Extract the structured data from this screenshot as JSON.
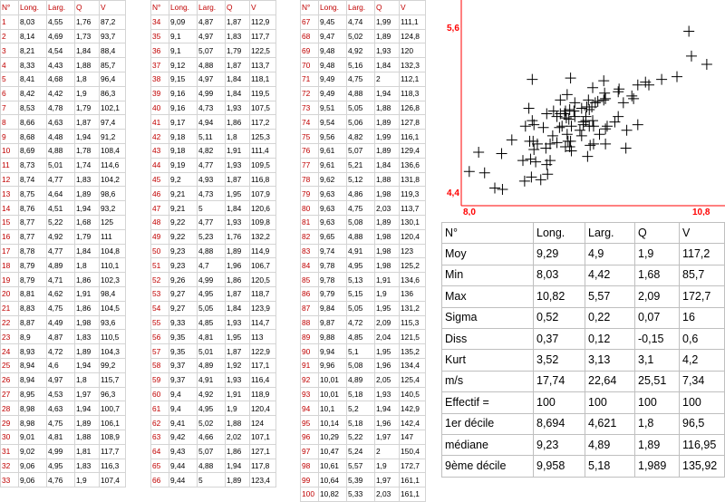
{
  "headers": [
    "N°",
    "Long.",
    "Larg.",
    "Q",
    "V"
  ],
  "blocks": [
    [
      [
        "1",
        "8,03",
        "4,55",
        "1,76",
        "87,2"
      ],
      [
        "2",
        "8,14",
        "4,69",
        "1,73",
        "93,7"
      ],
      [
        "3",
        "8,21",
        "4,54",
        "1,84",
        "88,4"
      ],
      [
        "4",
        "8,33",
        "4,43",
        "1,88",
        "85,7"
      ],
      [
        "5",
        "8,41",
        "4,68",
        "1,8",
        "96,4"
      ],
      [
        "6",
        "8,42",
        "4,42",
        "1,9",
        "86,3"
      ],
      [
        "7",
        "8,53",
        "4,78",
        "1,79",
        "102,1"
      ],
      [
        "8",
        "8,66",
        "4,63",
        "1,87",
        "97,4"
      ],
      [
        "9",
        "8,68",
        "4,48",
        "1,94",
        "91,2"
      ],
      [
        "10",
        "8,69",
        "4,88",
        "1,78",
        "108,4"
      ],
      [
        "11",
        "8,73",
        "5,01",
        "1,74",
        "114,6"
      ],
      [
        "12",
        "8,74",
        "4,77",
        "1,83",
        "104,2"
      ],
      [
        "13",
        "8,75",
        "4,64",
        "1,89",
        "98,6"
      ],
      [
        "14",
        "8,76",
        "4,51",
        "1,94",
        "93,2"
      ],
      [
        "15",
        "8,77",
        "5,22",
        "1,68",
        "125"
      ],
      [
        "16",
        "8,77",
        "4,92",
        "1,79",
        "111"
      ],
      [
        "17",
        "8,78",
        "4,77",
        "1,84",
        "104,8"
      ],
      [
        "18",
        "8,79",
        "4,89",
        "1,8",
        "110,1"
      ],
      [
        "19",
        "8,79",
        "4,71",
        "1,86",
        "102,3"
      ],
      [
        "20",
        "8,81",
        "4,62",
        "1,91",
        "98,4"
      ],
      [
        "21",
        "8,83",
        "4,75",
        "1,86",
        "104,5"
      ],
      [
        "22",
        "8,87",
        "4,49",
        "1,98",
        "93,6"
      ],
      [
        "23",
        "8,9",
        "4,87",
        "1,83",
        "110,5"
      ],
      [
        "24",
        "8,93",
        "4,72",
        "1,89",
        "104,3"
      ],
      [
        "25",
        "8,94",
        "4,6",
        "1,94",
        "99,2"
      ],
      [
        "26",
        "8,94",
        "4,97",
        "1,8",
        "115,7"
      ],
      [
        "27",
        "8,95",
        "4,53",
        "1,97",
        "96,3"
      ],
      [
        "28",
        "8,98",
        "4,63",
        "1,94",
        "100,7"
      ],
      [
        "29",
        "8,98",
        "4,75",
        "1,89",
        "106,1"
      ],
      [
        "30",
        "9,01",
        "4,81",
        "1,88",
        "108,9"
      ],
      [
        "31",
        "9,02",
        "4,99",
        "1,81",
        "117,7"
      ],
      [
        "32",
        "9,06",
        "4,95",
        "1,83",
        "116,3"
      ],
      [
        "33",
        "9,06",
        "4,76",
        "1,9",
        "107,4"
      ]
    ],
    [
      [
        "34",
        "9,09",
        "4,87",
        "1,87",
        "112,9"
      ],
      [
        "35",
        "9,1",
        "4,97",
        "1,83",
        "117,7"
      ],
      [
        "36",
        "9,1",
        "5,07",
        "1,79",
        "122,5"
      ],
      [
        "37",
        "9,12",
        "4,88",
        "1,87",
        "113,7"
      ],
      [
        "38",
        "9,15",
        "4,97",
        "1,84",
        "118,1"
      ],
      [
        "39",
        "9,16",
        "4,99",
        "1,84",
        "119,5"
      ],
      [
        "40",
        "9,16",
        "4,73",
        "1,93",
        "107,5"
      ],
      [
        "41",
        "9,17",
        "4,94",
        "1,86",
        "117,2"
      ],
      [
        "42",
        "9,18",
        "5,11",
        "1,8",
        "125,3"
      ],
      [
        "43",
        "9,18",
        "4,82",
        "1,91",
        "111,4"
      ],
      [
        "44",
        "9,19",
        "4,77",
        "1,93",
        "109,5"
      ],
      [
        "45",
        "9,2",
        "4,93",
        "1,87",
        "116,8"
      ],
      [
        "46",
        "9,21",
        "4,73",
        "1,95",
        "107,9"
      ],
      [
        "47",
        "9,21",
        "5",
        "1,84",
        "120,6"
      ],
      [
        "48",
        "9,22",
        "4,77",
        "1,93",
        "109,8"
      ],
      [
        "49",
        "9,22",
        "5,23",
        "1,76",
        "132,2"
      ],
      [
        "50",
        "9,23",
        "4,88",
        "1,89",
        "114,9"
      ],
      [
        "51",
        "9,23",
        "4,7",
        "1,96",
        "106,7"
      ],
      [
        "52",
        "9,26",
        "4,99",
        "1,86",
        "120,5"
      ],
      [
        "53",
        "9,27",
        "4,95",
        "1,87",
        "118,7"
      ],
      [
        "54",
        "9,27",
        "5,05",
        "1,84",
        "123,9"
      ],
      [
        "55",
        "9,33",
        "4,85",
        "1,93",
        "114,7"
      ],
      [
        "56",
        "9,35",
        "4,81",
        "1,95",
        "113"
      ],
      [
        "57",
        "9,35",
        "5,01",
        "1,87",
        "122,9"
      ],
      [
        "58",
        "9,37",
        "4,89",
        "1,92",
        "117,1"
      ],
      [
        "59",
        "9,37",
        "4,91",
        "1,93",
        "116,4"
      ],
      [
        "60",
        "9,4",
        "4,92",
        "1,91",
        "118,9"
      ],
      [
        "61",
        "9,4",
        "4,95",
        "1,9",
        "120,4"
      ],
      [
        "62",
        "9,41",
        "5,02",
        "1,88",
        "124"
      ],
      [
        "63",
        "9,42",
        "4,66",
        "2,02",
        "107,1"
      ],
      [
        "64",
        "9,43",
        "5,07",
        "1,86",
        "127,1"
      ],
      [
        "65",
        "9,44",
        "4,88",
        "1,94",
        "117,8"
      ],
      [
        "66",
        "9,44",
        "5",
        "1,89",
        "123,4"
      ]
    ],
    [
      [
        "67",
        "9,45",
        "4,74",
        "1,99",
        "111,1"
      ],
      [
        "68",
        "9,47",
        "5,02",
        "1,89",
        "124,8"
      ],
      [
        "69",
        "9,48",
        "4,92",
        "1,93",
        "120"
      ],
      [
        "70",
        "9,48",
        "5,16",
        "1,84",
        "132,3"
      ],
      [
        "71",
        "9,49",
        "4,75",
        "2",
        "112,1"
      ],
      [
        "72",
        "9,49",
        "4,88",
        "1,94",
        "118,3"
      ],
      [
        "73",
        "9,51",
        "5,05",
        "1,88",
        "126,8"
      ],
      [
        "74",
        "9,54",
        "5,06",
        "1,89",
        "127,8"
      ],
      [
        "75",
        "9,56",
        "4,82",
        "1,99",
        "116,1"
      ],
      [
        "76",
        "9,61",
        "5,07",
        "1,89",
        "129,4"
      ],
      [
        "77",
        "9,61",
        "5,21",
        "1,84",
        "136,6"
      ],
      [
        "78",
        "9,62",
        "5,12",
        "1,88",
        "131,8"
      ],
      [
        "79",
        "9,63",
        "4,86",
        "1,98",
        "119,3"
      ],
      [
        "80",
        "9,63",
        "4,75",
        "2,03",
        "113,7"
      ],
      [
        "81",
        "9,63",
        "5,08",
        "1,89",
        "130,1"
      ],
      [
        "82",
        "9,65",
        "4,88",
        "1,98",
        "120,4"
      ],
      [
        "83",
        "9,74",
        "4,91",
        "1,98",
        "123"
      ],
      [
        "84",
        "9,78",
        "4,95",
        "1,98",
        "125,2"
      ],
      [
        "85",
        "9,78",
        "5,13",
        "1,91",
        "134,6"
      ],
      [
        "86",
        "9,79",
        "5,15",
        "1,9",
        "136"
      ],
      [
        "87",
        "9,84",
        "5,05",
        "1,95",
        "131,2"
      ],
      [
        "88",
        "9,87",
        "4,72",
        "2,09",
        "115,3"
      ],
      [
        "89",
        "9,88",
        "4,85",
        "2,04",
        "121,5"
      ],
      [
        "90",
        "9,94",
        "5,1",
        "1,95",
        "135,2"
      ],
      [
        "91",
        "9,96",
        "5,08",
        "1,96",
        "134,4"
      ],
      [
        "92",
        "10,01",
        "4,89",
        "2,05",
        "125,4"
      ],
      [
        "93",
        "10,01",
        "5,18",
        "1,93",
        "140,5"
      ],
      [
        "94",
        "10,1",
        "5,2",
        "1,94",
        "142,9"
      ],
      [
        "95",
        "10,14",
        "5,18",
        "1,96",
        "142,4"
      ],
      [
        "96",
        "10,29",
        "5,22",
        "1,97",
        "147"
      ],
      [
        "97",
        "10,47",
        "5,24",
        "2",
        "150,4"
      ],
      [
        "98",
        "10,61",
        "5,57",
        "1,9",
        "172,7"
      ],
      [
        "99",
        "10,64",
        "5,39",
        "1,97",
        "161,1"
      ],
      [
        "100",
        "10,82",
        "5,33",
        "2,03",
        "161,1"
      ]
    ]
  ],
  "stats": {
    "header": [
      "N°",
      "Long.",
      "Larg.",
      "Q",
      "V"
    ],
    "rows": [
      [
        "Moy",
        "9,29",
        "4,9",
        "1,9",
        "117,2"
      ],
      [
        "Min",
        "8,03",
        "4,42",
        "1,68",
        "85,7"
      ],
      [
        "Max",
        "10,82",
        "5,57",
        "2,09",
        "172,7"
      ],
      [
        "Sigma",
        "0,52",
        "0,22",
        "0,07",
        "16"
      ],
      [
        "Diss",
        "0,37",
        "0,12",
        "-0,15",
        "0,6"
      ],
      [
        "Kurt",
        "3,52",
        "3,13",
        "3,1",
        "4,2"
      ],
      [
        "m/s",
        "17,74",
        "22,64",
        "25,51",
        "7,34"
      ],
      [
        "Effectif =",
        "100",
        "100",
        "100",
        "100"
      ],
      [
        "1er décile",
        "8,694",
        "4,621",
        "1,8",
        "96,5"
      ],
      [
        "médiane",
        "9,23",
        "4,89",
        "1,89",
        "116,95"
      ],
      [
        "9ème décile",
        "9,958",
        "5,18",
        "1,989",
        "135,92"
      ]
    ]
  },
  "chart_data": {
    "type": "scatter",
    "x_tick_labels": [
      "8,0",
      "10,8"
    ],
    "y_tick_labels": [
      "4,4",
      "5,6"
    ],
    "xlim": [
      8.0,
      10.8
    ],
    "ylim": [
      4.4,
      5.6
    ],
    "marker": "plus",
    "axis_color": "#ff0000",
    "tick_label_color": "#ff0000",
    "points": [
      [
        8.03,
        4.55
      ],
      [
        8.14,
        4.69
      ],
      [
        8.21,
        4.54
      ],
      [
        8.33,
        4.43
      ],
      [
        8.41,
        4.68
      ],
      [
        8.42,
        4.42
      ],
      [
        8.53,
        4.78
      ],
      [
        8.66,
        4.63
      ],
      [
        8.68,
        4.48
      ],
      [
        8.69,
        4.88
      ],
      [
        8.73,
        5.01
      ],
      [
        8.74,
        4.77
      ],
      [
        8.75,
        4.64
      ],
      [
        8.76,
        4.51
      ],
      [
        8.77,
        5.22
      ],
      [
        8.77,
        4.92
      ],
      [
        8.78,
        4.77
      ],
      [
        8.79,
        4.89
      ],
      [
        8.79,
        4.71
      ],
      [
        8.81,
        4.62
      ],
      [
        8.83,
        4.75
      ],
      [
        8.87,
        4.49
      ],
      [
        8.9,
        4.87
      ],
      [
        8.93,
        4.72
      ],
      [
        8.94,
        4.6
      ],
      [
        8.94,
        4.97
      ],
      [
        8.95,
        4.53
      ],
      [
        8.98,
        4.63
      ],
      [
        8.98,
        4.75
      ],
      [
        9.01,
        4.81
      ],
      [
        9.02,
        4.99
      ],
      [
        9.06,
        4.95
      ],
      [
        9.06,
        4.76
      ],
      [
        9.09,
        4.87
      ],
      [
        9.1,
        4.97
      ],
      [
        9.1,
        5.07
      ],
      [
        9.12,
        4.88
      ],
      [
        9.15,
        4.97
      ],
      [
        9.16,
        4.99
      ],
      [
        9.16,
        4.73
      ],
      [
        9.17,
        4.94
      ],
      [
        9.18,
        5.11
      ],
      [
        9.18,
        4.82
      ],
      [
        9.19,
        4.77
      ],
      [
        9.2,
        4.93
      ],
      [
        9.21,
        4.73
      ],
      [
        9.21,
        5.0
      ],
      [
        9.22,
        4.77
      ],
      [
        9.22,
        5.23
      ],
      [
        9.23,
        4.88
      ],
      [
        9.23,
        4.7
      ],
      [
        9.26,
        4.99
      ],
      [
        9.27,
        4.95
      ],
      [
        9.27,
        5.05
      ],
      [
        9.33,
        4.85
      ],
      [
        9.35,
        4.81
      ],
      [
        9.35,
        5.01
      ],
      [
        9.37,
        4.89
      ],
      [
        9.37,
        4.91
      ],
      [
        9.4,
        4.92
      ],
      [
        9.4,
        4.95
      ],
      [
        9.41,
        5.02
      ],
      [
        9.42,
        4.66
      ],
      [
        9.43,
        5.07
      ],
      [
        9.44,
        4.88
      ],
      [
        9.44,
        5.0
      ],
      [
        9.45,
        4.74
      ],
      [
        9.47,
        5.02
      ],
      [
        9.48,
        4.92
      ],
      [
        9.48,
        5.16
      ],
      [
        9.49,
        4.75
      ],
      [
        9.49,
        4.88
      ],
      [
        9.51,
        5.05
      ],
      [
        9.54,
        5.06
      ],
      [
        9.56,
        4.82
      ],
      [
        9.61,
        5.07
      ],
      [
        9.61,
        5.21
      ],
      [
        9.62,
        5.12
      ],
      [
        9.63,
        4.86
      ],
      [
        9.63,
        4.75
      ],
      [
        9.63,
        5.08
      ],
      [
        9.65,
        4.88
      ],
      [
        9.74,
        4.91
      ],
      [
        9.78,
        4.95
      ],
      [
        9.78,
        5.13
      ],
      [
        9.79,
        5.15
      ],
      [
        9.84,
        5.05
      ],
      [
        9.87,
        4.72
      ],
      [
        9.88,
        4.85
      ],
      [
        9.94,
        5.1
      ],
      [
        9.96,
        5.08
      ],
      [
        10.01,
        4.89
      ],
      [
        10.01,
        5.18
      ],
      [
        10.1,
        5.2
      ],
      [
        10.14,
        5.18
      ],
      [
        10.29,
        5.22
      ],
      [
        10.47,
        5.24
      ],
      [
        10.61,
        5.57
      ],
      [
        10.64,
        5.39
      ],
      [
        10.82,
        5.33
      ]
    ]
  }
}
